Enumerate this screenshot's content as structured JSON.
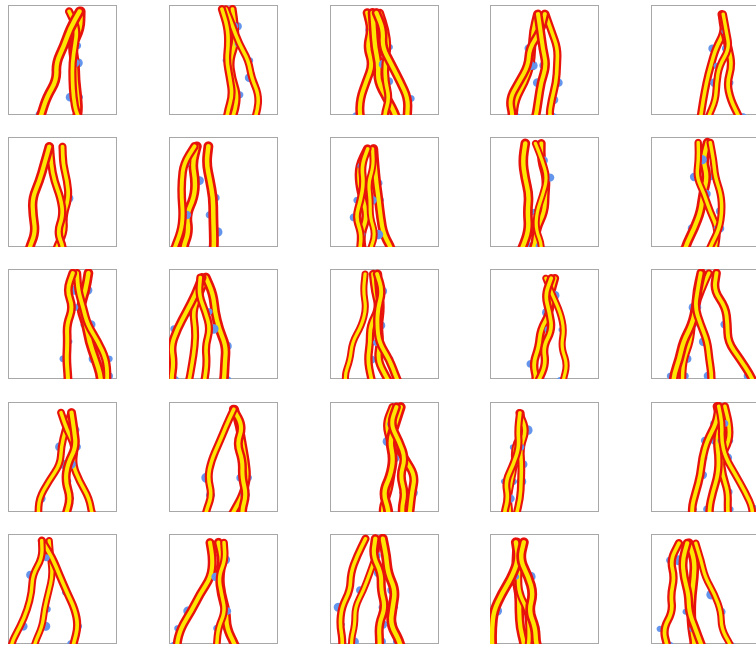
{
  "figure": {
    "rows": 5,
    "columns": 5
  },
  "colors": {
    "background": "#ffffff",
    "frame": "#a8a8a8",
    "root_outer": "#e8120c",
    "root_inner": "#ffe600",
    "root_tips": "#6495ed"
  },
  "panels": [
    {
      "id": "r1c1",
      "roots": 3
    },
    {
      "id": "r1c2",
      "roots": 3
    },
    {
      "id": "r1c3",
      "roots": 4
    },
    {
      "id": "r1c4",
      "roots": 4
    },
    {
      "id": "r1c5",
      "roots": 3
    },
    {
      "id": "r2c1",
      "roots": 3
    },
    {
      "id": "r2c2",
      "roots": 3
    },
    {
      "id": "r2c3",
      "roots": 4
    },
    {
      "id": "r2c4",
      "roots": 3
    },
    {
      "id": "r2c5",
      "roots": 3
    },
    {
      "id": "r3c1",
      "roots": 3
    },
    {
      "id": "r3c2",
      "roots": 4
    },
    {
      "id": "r3c3",
      "roots": 4
    },
    {
      "id": "r3c4",
      "roots": 3
    },
    {
      "id": "r3c5",
      "roots": 4
    },
    {
      "id": "r4c1",
      "roots": 3
    },
    {
      "id": "r4c2",
      "roots": 3
    },
    {
      "id": "r4c3",
      "roots": 4
    },
    {
      "id": "r4c4",
      "roots": 3
    },
    {
      "id": "r4c5",
      "roots": 4
    },
    {
      "id": "r5c1",
      "roots": 3
    },
    {
      "id": "r5c2",
      "roots": 3
    },
    {
      "id": "r5c3",
      "roots": 4
    },
    {
      "id": "r5c4",
      "roots": 4
    },
    {
      "id": "r5c5",
      "roots": 4
    }
  ]
}
